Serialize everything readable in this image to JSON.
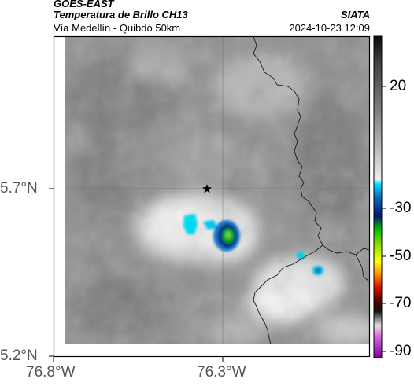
{
  "header": {
    "satellite": "GOES-EAST",
    "product": "Temperatura de Brillo CH13",
    "source": "SIATA",
    "region": "Vía Medellín - Quibdó 50km",
    "datetime": "2024-10-23 12:09"
  },
  "map": {
    "lat_ticks": [
      "5.7°N",
      "5.2°N"
    ],
    "lon_ticks": [
      "76.8°W",
      "76.3°W"
    ],
    "marker": "star-icon"
  },
  "colorbar": {
    "labels": [
      "20",
      "-30",
      "-50",
      "-70",
      "-90"
    ]
  }
}
